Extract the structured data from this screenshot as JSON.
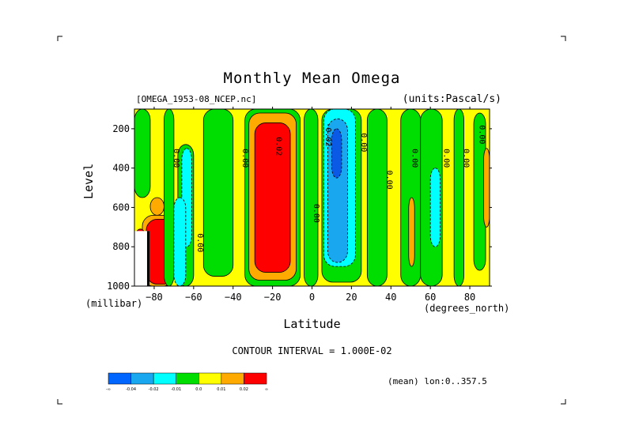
{
  "chart_data": {
    "type": "heatmap",
    "title": "Monthly Mean Omega",
    "dataset": "[OMEGA_1953-08_NCEP.nc]",
    "units": "(units:Pascal/s)",
    "xlabel": "Latitude",
    "xunit": "(degrees_north)",
    "ylabel": "Level",
    "yunit": "(millibar)",
    "xlim": [
      -90,
      90
    ],
    "ylim": [
      1000,
      100
    ],
    "y_inverted": true,
    "xticks": [
      -80,
      -60,
      -40,
      -20,
      0,
      20,
      40,
      60,
      80
    ],
    "xtick_labels": [
      "−80",
      "−60",
      "−40",
      "−20",
      "0",
      "20",
      "40",
      "60",
      "80"
    ],
    "yticks": [
      200,
      400,
      600,
      800,
      1000
    ],
    "ytick_labels": [
      "200",
      "400",
      "600",
      "800",
      "1000"
    ],
    "contour_interval": "CONTOUR INTERVAL = 1.000E-02",
    "footer": "(mean) lon:0..357.5",
    "colorbar": {
      "colors": [
        "#0066ff",
        "#19a8f0",
        "#00ffff",
        "#00dd00",
        "#ffff00",
        "#ffaa00",
        "#ff0000"
      ],
      "labels": [
        "-∞",
        "-0.04",
        "-0.02",
        "-0.01",
        "0.0",
        "0.01",
        "0.02",
        "∞"
      ]
    },
    "background_color": "#ffff00",
    "regions": [
      {
        "lat": [
          -90,
          -82
        ],
        "p": [
          100,
          550
        ],
        "level": "green"
      },
      {
        "lat": [
          -82,
          -75
        ],
        "p": [
          550,
          640
        ],
        "level": "orange"
      },
      {
        "lat": [
          -86,
          -70
        ],
        "p": [
          640,
          1000
        ],
        "level": "orange"
      },
      {
        "lat": [
          -84,
          -70
        ],
        "p": [
          660,
          990
        ],
        "level": "red"
      },
      {
        "lat": [
          -90,
          -84
        ],
        "p": [
          710,
          1000
        ],
        "level": "red"
      },
      {
        "lat": [
          -75,
          -70
        ],
        "p": [
          100,
          1000
        ],
        "level": "green"
      },
      {
        "lat": [
          -68,
          -60
        ],
        "p": [
          280,
          1000
        ],
        "level": "green"
      },
      {
        "lat": [
          -66,
          -61
        ],
        "p": [
          300,
          800
        ],
        "level": "cyan"
      },
      {
        "lat": [
          -70,
          -64
        ],
        "p": [
          550,
          1000
        ],
        "level": "cyan"
      },
      {
        "lat": [
          -55,
          -40
        ],
        "p": [
          100,
          950
        ],
        "level": "green"
      },
      {
        "lat": [
          -34,
          -6
        ],
        "p": [
          100,
          1000
        ],
        "level": "green"
      },
      {
        "lat": [
          -32,
          -8
        ],
        "p": [
          120,
          970
        ],
        "level": "orange"
      },
      {
        "lat": [
          -29,
          -11
        ],
        "p": [
          170,
          930
        ],
        "level": "red"
      },
      {
        "lat": [
          -4,
          3
        ],
        "p": [
          100,
          1000
        ],
        "level": "green"
      },
      {
        "lat": [
          5,
          25
        ],
        "p": [
          100,
          980
        ],
        "level": "green"
      },
      {
        "lat": [
          6,
          22
        ],
        "p": [
          100,
          900
        ],
        "level": "cyan"
      },
      {
        "lat": [
          8,
          18
        ],
        "p": [
          150,
          880
        ],
        "level": "blue"
      },
      {
        "lat": [
          10,
          15
        ],
        "p": [
          200,
          450
        ],
        "level": "dark-blue"
      },
      {
        "lat": [
          28,
          38
        ],
        "p": [
          100,
          1000
        ],
        "level": "green"
      },
      {
        "lat": [
          45,
          55
        ],
        "p": [
          100,
          1000
        ],
        "level": "green"
      },
      {
        "lat": [
          55,
          66
        ],
        "p": [
          100,
          1000
        ],
        "level": "green"
      },
      {
        "lat": [
          60,
          65
        ],
        "p": [
          400,
          800
        ],
        "level": "cyan"
      },
      {
        "lat": [
          72,
          77
        ],
        "p": [
          100,
          1000
        ],
        "level": "green"
      },
      {
        "lat": [
          82,
          88
        ],
        "p": [
          120,
          920
        ],
        "level": "green"
      },
      {
        "lat": [
          49,
          52
        ],
        "p": [
          550,
          900
        ],
        "level": "orange"
      },
      {
        "lat": [
          87,
          90
        ],
        "p": [
          300,
          700
        ],
        "level": "orange"
      }
    ],
    "contour_labels": [
      {
        "lat": -70,
        "p": 350,
        "text": "0.00"
      },
      {
        "lat": -58,
        "p": 780,
        "text": "0.00"
      },
      {
        "lat": -35,
        "p": 350,
        "text": "0.00"
      },
      {
        "lat": -18,
        "p": 290,
        "text": "0.02"
      },
      {
        "lat": 1,
        "p": 630,
        "text": "0.00"
      },
      {
        "lat": 7,
        "p": 230,
        "text": "-0.02"
      },
      {
        "lat": 25,
        "p": 270,
        "text": "0.00"
      },
      {
        "lat": 38,
        "p": 460,
        "text": "0.00"
      },
      {
        "lat": 51,
        "p": 350,
        "text": "0.00"
      },
      {
        "lat": 67,
        "p": 350,
        "text": "0.00"
      },
      {
        "lat": 77,
        "p": 350,
        "text": "0.00"
      },
      {
        "lat": 85,
        "p": 230,
        "text": "0.00"
      }
    ]
  }
}
